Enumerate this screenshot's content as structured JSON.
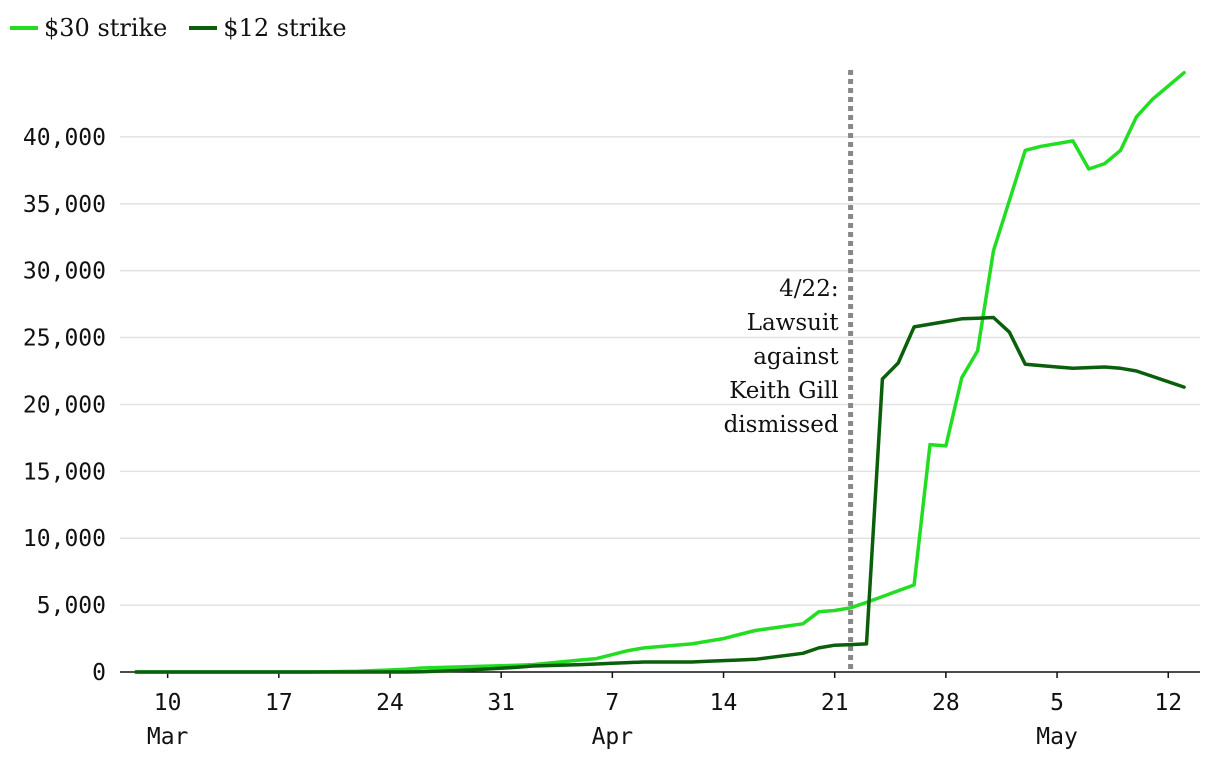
{
  "chart_data": {
    "type": "line",
    "title": "",
    "xlabel": "",
    "ylabel": "",
    "ylim": [
      0,
      45000
    ],
    "y_ticks": [
      0,
      5000,
      10000,
      15000,
      20000,
      25000,
      30000,
      35000,
      40000
    ],
    "y_tick_labels": [
      "0",
      "5,000",
      "10,000",
      "15,000",
      "20,000",
      "25,000",
      "30,000",
      "35,000",
      "40,000"
    ],
    "grid": "horizontal",
    "legend_placement": "top-left",
    "x_ticks": [
      {
        "date": "2021-03-10",
        "label": "10",
        "month_label": "Mar"
      },
      {
        "date": "2021-03-17",
        "label": "17",
        "month_label": ""
      },
      {
        "date": "2021-03-24",
        "label": "24",
        "month_label": ""
      },
      {
        "date": "2021-03-31",
        "label": "31",
        "month_label": ""
      },
      {
        "date": "2021-04-07",
        "label": "7",
        "month_label": "Apr"
      },
      {
        "date": "2021-04-14",
        "label": "14",
        "month_label": ""
      },
      {
        "date": "2021-04-21",
        "label": "21",
        "month_label": ""
      },
      {
        "date": "2021-04-28",
        "label": "28",
        "month_label": ""
      },
      {
        "date": "2021-05-05",
        "label": "5",
        "month_label": "May"
      },
      {
        "date": "2021-05-12",
        "label": "12",
        "month_label": ""
      }
    ],
    "xlim": [
      "2021-03-07",
      "2021-05-14"
    ],
    "annotation": {
      "date": "2021-04-22",
      "lines": [
        "4/22:",
        "Lawsuit",
        "against",
        "Keith Gill",
        "dismissed"
      ]
    },
    "series": [
      {
        "name": "$30 strike",
        "color": "#22dd22",
        "points": [
          [
            "2021-03-08",
            0
          ],
          [
            "2021-03-12",
            0
          ],
          [
            "2021-03-15",
            0
          ],
          [
            "2021-03-19",
            0
          ],
          [
            "2021-03-22",
            50
          ],
          [
            "2021-03-25",
            200
          ],
          [
            "2021-03-26",
            300
          ],
          [
            "2021-03-29",
            400
          ],
          [
            "2021-04-01",
            500
          ],
          [
            "2021-04-02",
            550
          ],
          [
            "2021-04-05",
            900
          ],
          [
            "2021-04-06",
            1000
          ],
          [
            "2021-04-07",
            1300
          ],
          [
            "2021-04-08",
            1600
          ],
          [
            "2021-04-09",
            1800
          ],
          [
            "2021-04-12",
            2100
          ],
          [
            "2021-04-13",
            2300
          ],
          [
            "2021-04-14",
            2500
          ],
          [
            "2021-04-15",
            2800
          ],
          [
            "2021-04-16",
            3100
          ],
          [
            "2021-04-19",
            3600
          ],
          [
            "2021-04-20",
            4500
          ],
          [
            "2021-04-21",
            4600
          ],
          [
            "2021-04-22",
            4800
          ],
          [
            "2021-04-23",
            5200
          ],
          [
            "2021-04-26",
            6500
          ],
          [
            "2021-04-27",
            17000
          ],
          [
            "2021-04-28",
            16900
          ],
          [
            "2021-04-29",
            22000
          ],
          [
            "2021-04-30",
            24000
          ],
          [
            "2021-05-01",
            31500
          ],
          [
            "2021-05-03",
            39000
          ],
          [
            "2021-05-04",
            39300
          ],
          [
            "2021-05-06",
            39700
          ],
          [
            "2021-05-07",
            37600
          ],
          [
            "2021-05-08",
            38000
          ],
          [
            "2021-05-09",
            39000
          ],
          [
            "2021-05-10",
            41500
          ],
          [
            "2021-05-11",
            42800
          ],
          [
            "2021-05-13",
            44800
          ]
        ]
      },
      {
        "name": "$12 strike",
        "color": "#0b5f0b",
        "points": [
          [
            "2021-03-08",
            0
          ],
          [
            "2021-03-12",
            0
          ],
          [
            "2021-03-15",
            0
          ],
          [
            "2021-03-19",
            0
          ],
          [
            "2021-03-22",
            0
          ],
          [
            "2021-03-25",
            0
          ],
          [
            "2021-03-26",
            20
          ],
          [
            "2021-03-29",
            150
          ],
          [
            "2021-04-01",
            350
          ],
          [
            "2021-04-02",
            450
          ],
          [
            "2021-04-05",
            550
          ],
          [
            "2021-04-06",
            600
          ],
          [
            "2021-04-07",
            650
          ],
          [
            "2021-04-08",
            700
          ],
          [
            "2021-04-09",
            750
          ],
          [
            "2021-04-12",
            750
          ],
          [
            "2021-04-13",
            800
          ],
          [
            "2021-04-14",
            850
          ],
          [
            "2021-04-15",
            900
          ],
          [
            "2021-04-16",
            950
          ],
          [
            "2021-04-19",
            1400
          ],
          [
            "2021-04-20",
            1800
          ],
          [
            "2021-04-21",
            2000
          ],
          [
            "2021-04-22",
            2050
          ],
          [
            "2021-04-23",
            2100
          ],
          [
            "2021-04-24",
            21900
          ],
          [
            "2021-04-25",
            23100
          ],
          [
            "2021-04-26",
            25800
          ],
          [
            "2021-04-28",
            26200
          ],
          [
            "2021-04-29",
            26400
          ],
          [
            "2021-04-30",
            26450
          ],
          [
            "2021-05-01",
            26500
          ],
          [
            "2021-05-02",
            25400
          ],
          [
            "2021-05-03",
            23000
          ],
          [
            "2021-05-05",
            22800
          ],
          [
            "2021-05-06",
            22700
          ],
          [
            "2021-05-08",
            22800
          ],
          [
            "2021-05-09",
            22700
          ],
          [
            "2021-05-10",
            22500
          ],
          [
            "2021-05-11",
            22100
          ],
          [
            "2021-05-13",
            21300
          ]
        ]
      }
    ]
  }
}
